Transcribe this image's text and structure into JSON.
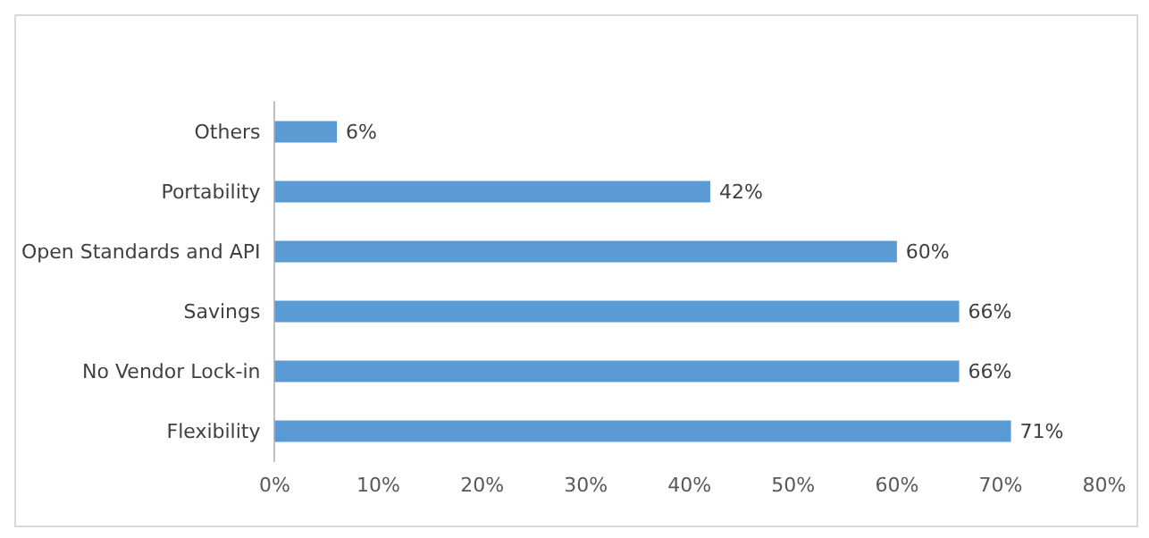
{
  "chart_data": {
    "type": "bar",
    "orientation": "horizontal",
    "categories": [
      "Others",
      "Portability",
      "Open Standards and API",
      "Savings",
      "No Vendor Lock-in",
      "Flexibility"
    ],
    "values": [
      6,
      42,
      60,
      66,
      66,
      71
    ],
    "value_labels": [
      "6%",
      "42%",
      "60%",
      "66%",
      "66%",
      "71%"
    ],
    "color": "#5b9bd5",
    "xlim": [
      0,
      80
    ],
    "xticks": [
      {
        "value": 0,
        "label": "0%"
      },
      {
        "value": 10,
        "label": "10%"
      },
      {
        "value": 20,
        "label": "20%"
      },
      {
        "value": 30,
        "label": "30%"
      },
      {
        "value": 40,
        "label": "40%"
      },
      {
        "value": 50,
        "label": "50%"
      },
      {
        "value": 60,
        "label": "60%"
      },
      {
        "value": 70,
        "label": "70%"
      },
      {
        "value": 80,
        "label": "80%"
      }
    ],
    "grid": false
  }
}
